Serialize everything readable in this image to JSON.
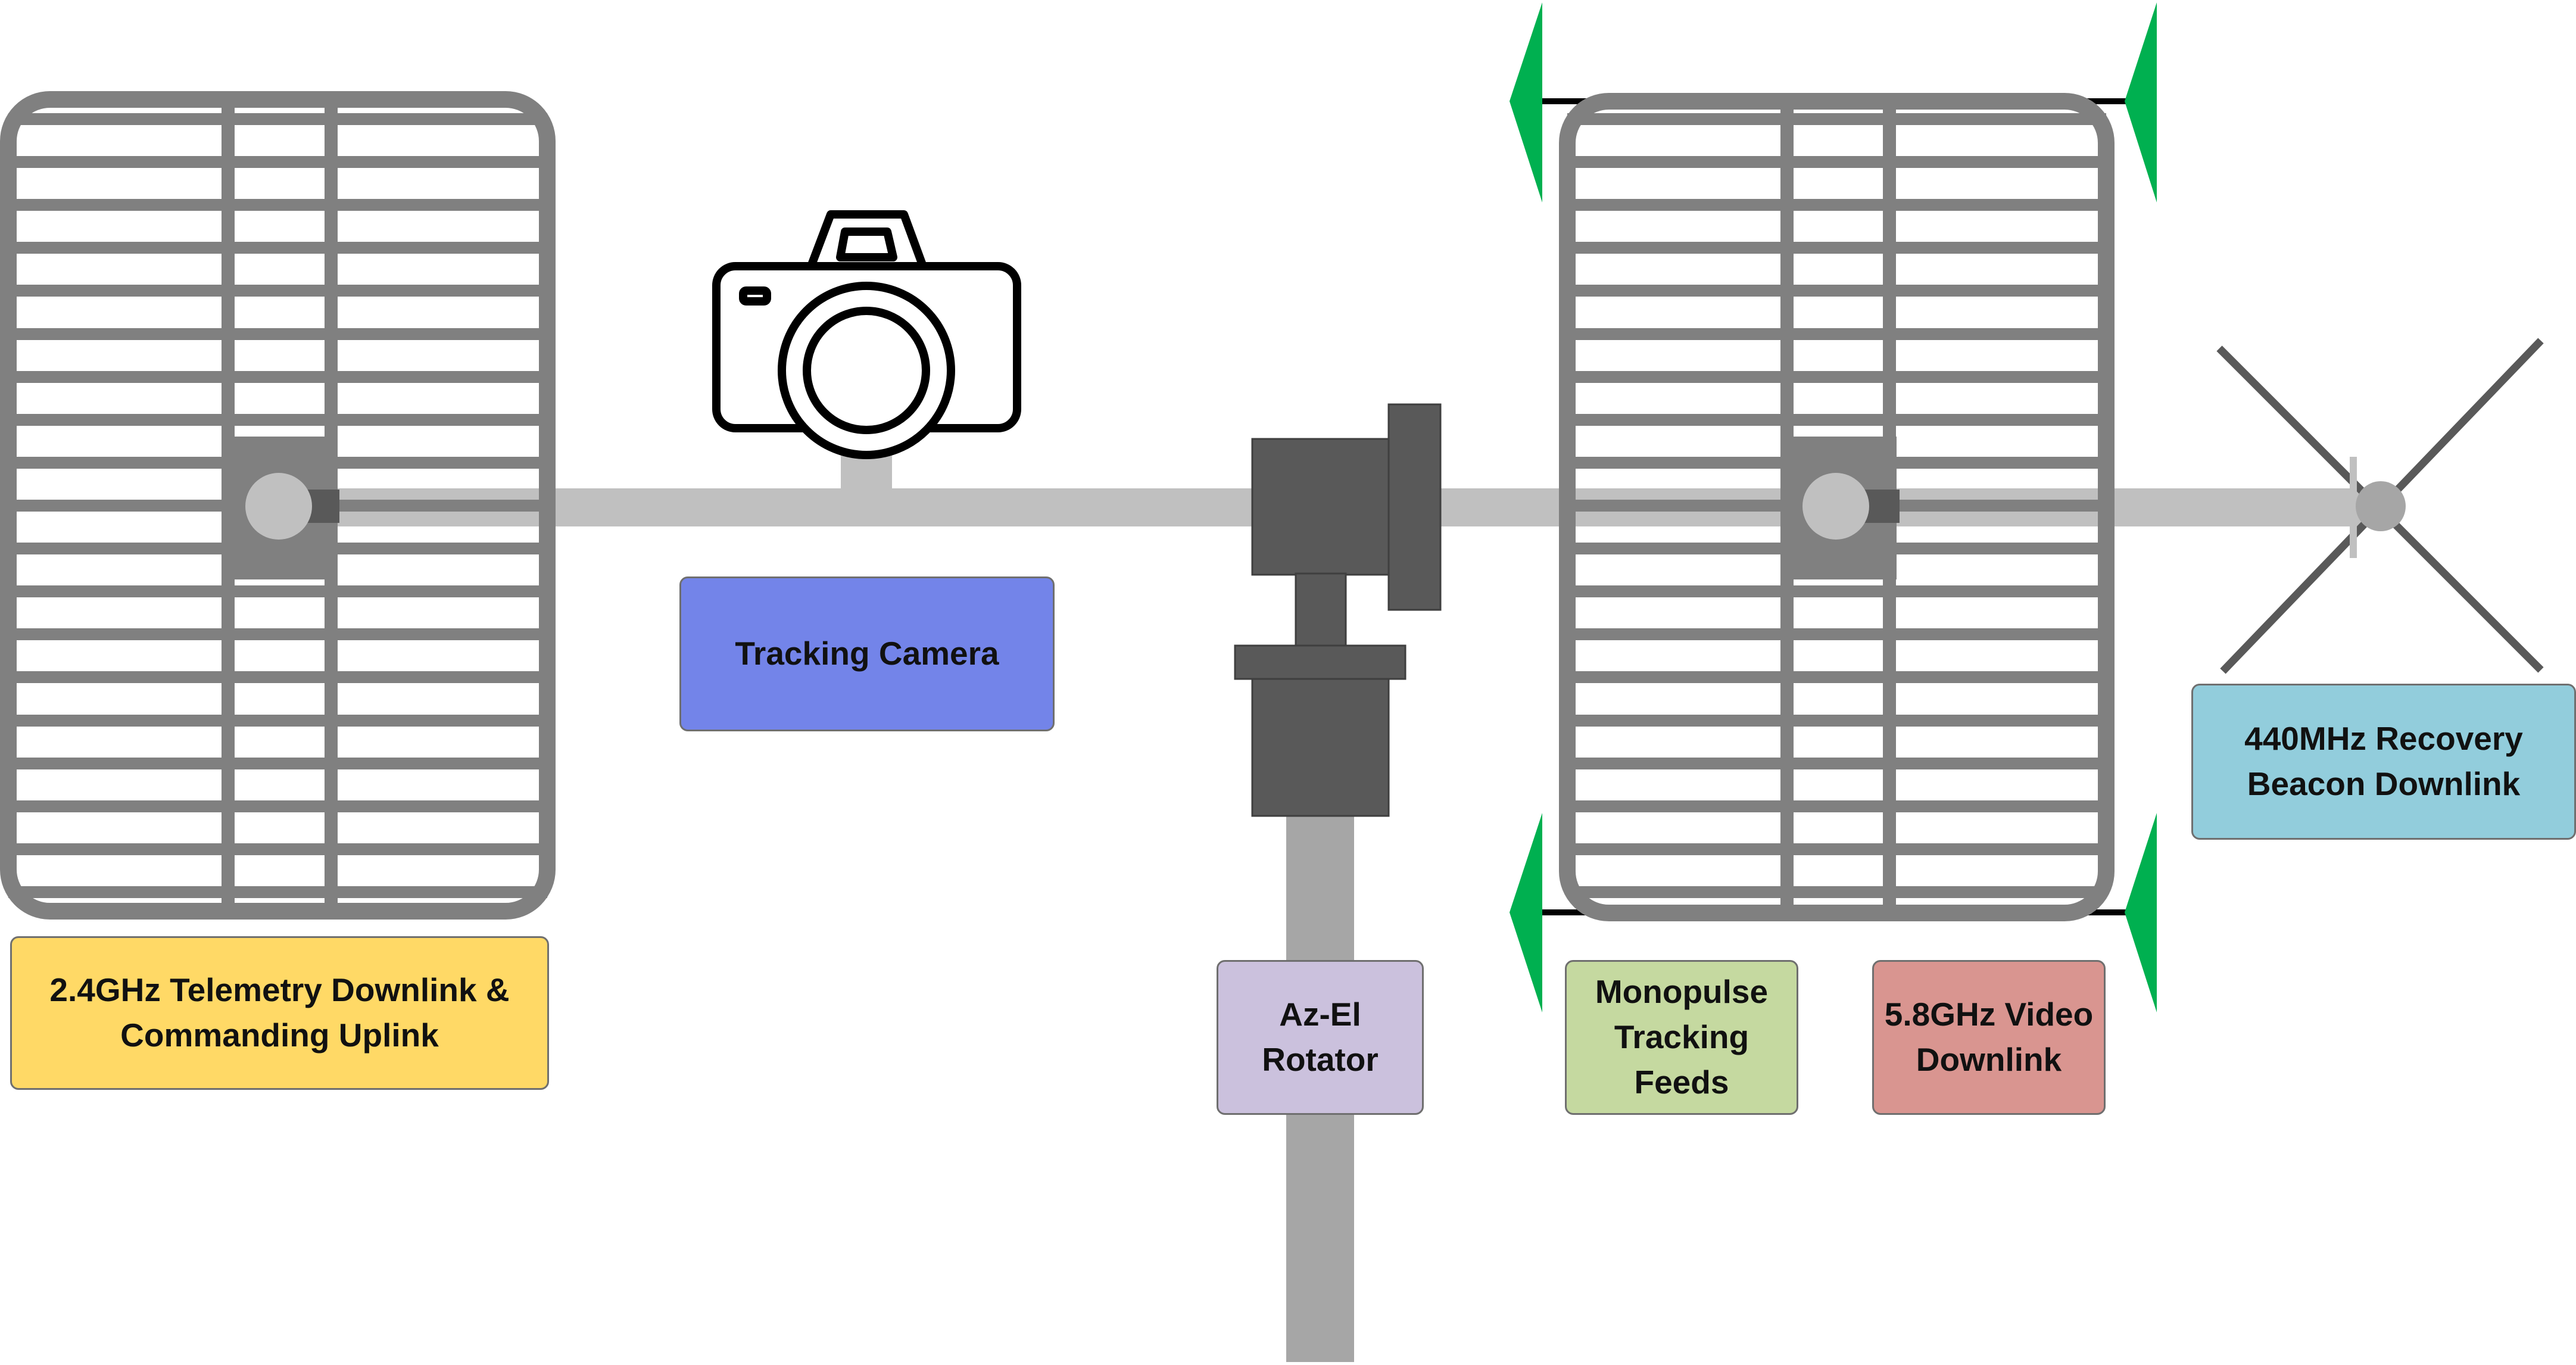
{
  "labels": {
    "telemetry": "2.4GHz Telemetry Downlink &\nCommanding Uplink",
    "camera": "Tracking Camera",
    "rotator": "Az-El\nRotator",
    "monopulse": "Monopulse\nTracking\nFeeds",
    "video": "5.8GHz Video\nDownlink",
    "beacon": "440MHz Recovery\nBeacon Downlink"
  },
  "colors": {
    "telemetry": "#ffd966",
    "camera": "#7384e9",
    "rotator": "#cbc1dd",
    "monopulse": "#c5d9a0",
    "video": "#d99590",
    "beacon": "#92cddc",
    "grid_antenna": "#808080",
    "boom": "#c0c0c0",
    "mast": "#a6a6a6",
    "rotator_body": "#595959",
    "feed": "#00b050",
    "yagi": "#595959"
  },
  "icons": {
    "left_antenna": "grid-antenna-icon",
    "right_antenna": "grid-antenna-icon",
    "camera": "camera-icon",
    "rotator": "az-el-rotator-icon",
    "feeds": "monopulse-feed-icon",
    "beacon": "crossed-yagi-antenna-icon"
  }
}
